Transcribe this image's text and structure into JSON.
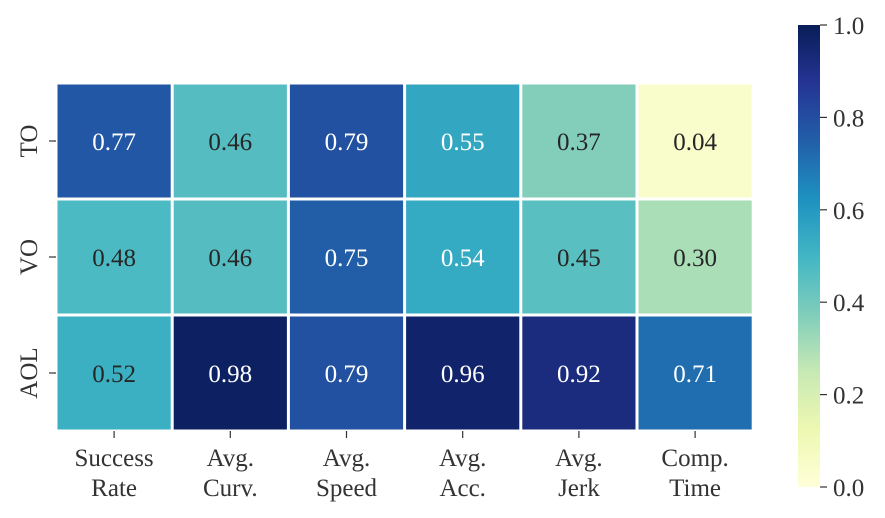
{
  "chart_data": {
    "type": "heatmap",
    "title": "",
    "xlabel": "",
    "ylabel": "",
    "rows": [
      "TO",
      "VO",
      "AOL"
    ],
    "columns": [
      [
        "Success",
        "Rate"
      ],
      [
        "Avg.",
        "Curv."
      ],
      [
        "Avg.",
        "Speed"
      ],
      [
        "Avg.",
        "Acc."
      ],
      [
        "Avg.",
        "Jerk"
      ],
      [
        "Comp.",
        "Time"
      ]
    ],
    "values": [
      [
        0.77,
        0.46,
        0.79,
        0.55,
        0.37,
        0.04
      ],
      [
        0.48,
        0.46,
        0.75,
        0.54,
        0.45,
        0.3
      ],
      [
        0.52,
        0.98,
        0.79,
        0.96,
        0.92,
        0.71
      ]
    ],
    "value_labels": [
      [
        "0.77",
        "0.46",
        "0.79",
        "0.55",
        "0.37",
        "0.04"
      ],
      [
        "0.48",
        "0.46",
        "0.75",
        "0.54",
        "0.45",
        "0.30"
      ],
      [
        "0.52",
        "0.98",
        "0.79",
        "0.96",
        "0.92",
        "0.71"
      ]
    ],
    "colormap": "YlGnBu",
    "vmin": 0.0,
    "vmax": 1.0,
    "colorbar": {
      "ticks": [
        0.0,
        0.2,
        0.4,
        0.6,
        0.8,
        1.0
      ],
      "tick_labels": [
        "0.0",
        "0.2",
        "0.4",
        "0.6",
        "0.8",
        "1.0"
      ]
    },
    "grid": false,
    "legend": "colorbar-right"
  }
}
